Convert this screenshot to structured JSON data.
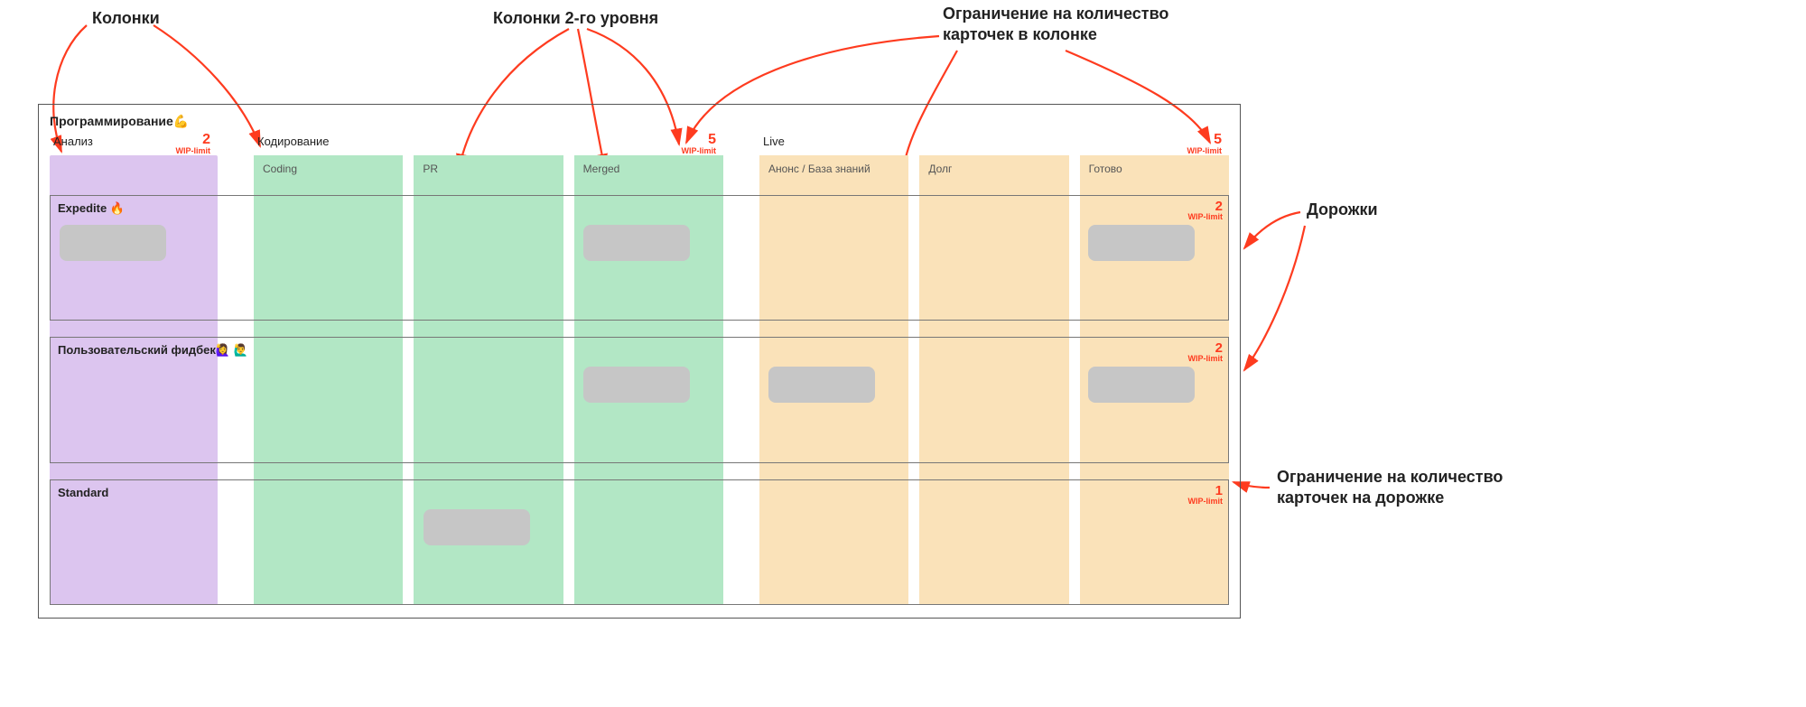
{
  "annotations": {
    "columns": "Колонки",
    "subcolumns": "Колонки 2-го уровня",
    "column_wip": "Ограничение на количество карточек в колонке",
    "lanes": "Дорожки",
    "lane_wip": "Ограничение на количество карточек на дорожке"
  },
  "board": {
    "title": "Программирование💪",
    "wip_label": "WIP-limit",
    "arrow_color": "#fe3b1f",
    "colors": {
      "analysis": "#dcc5ef",
      "coding": "#b2e7c5",
      "live": "#fae2b9",
      "card": "#c6c6c6",
      "gap": "#ffffff"
    },
    "layout": {
      "analysis_width": 186,
      "coding_width": 520,
      "live_width": 520,
      "gap_before_coding": 40,
      "gap_before_live": 40,
      "subcol_gap": 12
    },
    "columns": [
      {
        "key": "analysis",
        "label": "Анализ",
        "wip": 2,
        "sub": []
      },
      {
        "key": "coding",
        "label": "Кодирование",
        "wip": 5,
        "sub": [
          "Coding",
          "PR",
          "Merged"
        ]
      },
      {
        "key": "live",
        "label": "Live",
        "wip": 5,
        "sub": [
          "Анонс / База знаний",
          "Долг",
          "Готово"
        ]
      }
    ],
    "cell_keys": [
      "analysis",
      "coding0",
      "coding1",
      "coding2",
      "live0",
      "live1",
      "live2"
    ],
    "lanes": [
      {
        "title": "Expedite 🔥",
        "wip": 2,
        "cards": {
          "analysis": 1,
          "coding2": 1,
          "live2": 1
        }
      },
      {
        "title": "Пользовательский фидбек🙋‍♀️ 🙋‍♂️",
        "wip": 2,
        "cards": {
          "coding2": 1,
          "live0": 1,
          "live2": 1
        }
      },
      {
        "title": "Standard",
        "wip": 1,
        "cards": {
          "coding1": 1
        }
      }
    ]
  }
}
